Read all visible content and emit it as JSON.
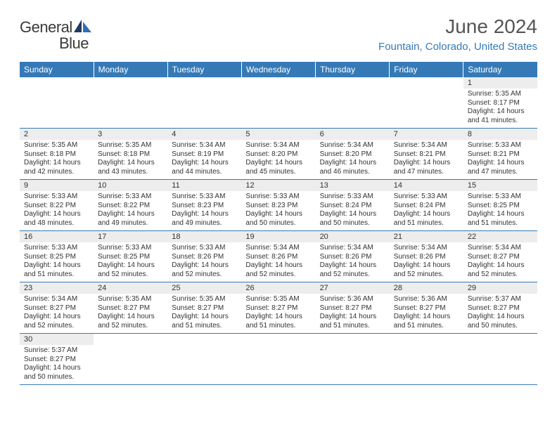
{
  "logo": {
    "part1": "General",
    "part2": "Blue"
  },
  "title": "June 2024",
  "location": "Fountain, Colorado, United States",
  "colors": {
    "header_bg": "#357ab7",
    "header_text": "#ffffff",
    "daynum_bg": "#ededed",
    "border": "#357ab7",
    "location_text": "#357ab7",
    "body_text": "#333333"
  },
  "weekdays": [
    "Sunday",
    "Monday",
    "Tuesday",
    "Wednesday",
    "Thursday",
    "Friday",
    "Saturday"
  ],
  "weeks": [
    {
      "nums": [
        "",
        "",
        "",
        "",
        "",
        "",
        "1"
      ],
      "cells": [
        null,
        null,
        null,
        null,
        null,
        null,
        {
          "sunrise": "Sunrise: 5:35 AM",
          "sunset": "Sunset: 8:17 PM",
          "day1": "Daylight: 14 hours",
          "day2": "and 41 minutes."
        }
      ]
    },
    {
      "nums": [
        "2",
        "3",
        "4",
        "5",
        "6",
        "7",
        "8"
      ],
      "cells": [
        {
          "sunrise": "Sunrise: 5:35 AM",
          "sunset": "Sunset: 8:18 PM",
          "day1": "Daylight: 14 hours",
          "day2": "and 42 minutes."
        },
        {
          "sunrise": "Sunrise: 5:35 AM",
          "sunset": "Sunset: 8:18 PM",
          "day1": "Daylight: 14 hours",
          "day2": "and 43 minutes."
        },
        {
          "sunrise": "Sunrise: 5:34 AM",
          "sunset": "Sunset: 8:19 PM",
          "day1": "Daylight: 14 hours",
          "day2": "and 44 minutes."
        },
        {
          "sunrise": "Sunrise: 5:34 AM",
          "sunset": "Sunset: 8:20 PM",
          "day1": "Daylight: 14 hours",
          "day2": "and 45 minutes."
        },
        {
          "sunrise": "Sunrise: 5:34 AM",
          "sunset": "Sunset: 8:20 PM",
          "day1": "Daylight: 14 hours",
          "day2": "and 46 minutes."
        },
        {
          "sunrise": "Sunrise: 5:34 AM",
          "sunset": "Sunset: 8:21 PM",
          "day1": "Daylight: 14 hours",
          "day2": "and 47 minutes."
        },
        {
          "sunrise": "Sunrise: 5:33 AM",
          "sunset": "Sunset: 8:21 PM",
          "day1": "Daylight: 14 hours",
          "day2": "and 47 minutes."
        }
      ]
    },
    {
      "nums": [
        "9",
        "10",
        "11",
        "12",
        "13",
        "14",
        "15"
      ],
      "cells": [
        {
          "sunrise": "Sunrise: 5:33 AM",
          "sunset": "Sunset: 8:22 PM",
          "day1": "Daylight: 14 hours",
          "day2": "and 48 minutes."
        },
        {
          "sunrise": "Sunrise: 5:33 AM",
          "sunset": "Sunset: 8:22 PM",
          "day1": "Daylight: 14 hours",
          "day2": "and 49 minutes."
        },
        {
          "sunrise": "Sunrise: 5:33 AM",
          "sunset": "Sunset: 8:23 PM",
          "day1": "Daylight: 14 hours",
          "day2": "and 49 minutes."
        },
        {
          "sunrise": "Sunrise: 5:33 AM",
          "sunset": "Sunset: 8:23 PM",
          "day1": "Daylight: 14 hours",
          "day2": "and 50 minutes."
        },
        {
          "sunrise": "Sunrise: 5:33 AM",
          "sunset": "Sunset: 8:24 PM",
          "day1": "Daylight: 14 hours",
          "day2": "and 50 minutes."
        },
        {
          "sunrise": "Sunrise: 5:33 AM",
          "sunset": "Sunset: 8:24 PM",
          "day1": "Daylight: 14 hours",
          "day2": "and 51 minutes."
        },
        {
          "sunrise": "Sunrise: 5:33 AM",
          "sunset": "Sunset: 8:25 PM",
          "day1": "Daylight: 14 hours",
          "day2": "and 51 minutes."
        }
      ]
    },
    {
      "nums": [
        "16",
        "17",
        "18",
        "19",
        "20",
        "21",
        "22"
      ],
      "cells": [
        {
          "sunrise": "Sunrise: 5:33 AM",
          "sunset": "Sunset: 8:25 PM",
          "day1": "Daylight: 14 hours",
          "day2": "and 51 minutes."
        },
        {
          "sunrise": "Sunrise: 5:33 AM",
          "sunset": "Sunset: 8:25 PM",
          "day1": "Daylight: 14 hours",
          "day2": "and 52 minutes."
        },
        {
          "sunrise": "Sunrise: 5:33 AM",
          "sunset": "Sunset: 8:26 PM",
          "day1": "Daylight: 14 hours",
          "day2": "and 52 minutes."
        },
        {
          "sunrise": "Sunrise: 5:34 AM",
          "sunset": "Sunset: 8:26 PM",
          "day1": "Daylight: 14 hours",
          "day2": "and 52 minutes."
        },
        {
          "sunrise": "Sunrise: 5:34 AM",
          "sunset": "Sunset: 8:26 PM",
          "day1": "Daylight: 14 hours",
          "day2": "and 52 minutes."
        },
        {
          "sunrise": "Sunrise: 5:34 AM",
          "sunset": "Sunset: 8:26 PM",
          "day1": "Daylight: 14 hours",
          "day2": "and 52 minutes."
        },
        {
          "sunrise": "Sunrise: 5:34 AM",
          "sunset": "Sunset: 8:27 PM",
          "day1": "Daylight: 14 hours",
          "day2": "and 52 minutes."
        }
      ]
    },
    {
      "nums": [
        "23",
        "24",
        "25",
        "26",
        "27",
        "28",
        "29"
      ],
      "cells": [
        {
          "sunrise": "Sunrise: 5:34 AM",
          "sunset": "Sunset: 8:27 PM",
          "day1": "Daylight: 14 hours",
          "day2": "and 52 minutes."
        },
        {
          "sunrise": "Sunrise: 5:35 AM",
          "sunset": "Sunset: 8:27 PM",
          "day1": "Daylight: 14 hours",
          "day2": "and 52 minutes."
        },
        {
          "sunrise": "Sunrise: 5:35 AM",
          "sunset": "Sunset: 8:27 PM",
          "day1": "Daylight: 14 hours",
          "day2": "and 51 minutes."
        },
        {
          "sunrise": "Sunrise: 5:35 AM",
          "sunset": "Sunset: 8:27 PM",
          "day1": "Daylight: 14 hours",
          "day2": "and 51 minutes."
        },
        {
          "sunrise": "Sunrise: 5:36 AM",
          "sunset": "Sunset: 8:27 PM",
          "day1": "Daylight: 14 hours",
          "day2": "and 51 minutes."
        },
        {
          "sunrise": "Sunrise: 5:36 AM",
          "sunset": "Sunset: 8:27 PM",
          "day1": "Daylight: 14 hours",
          "day2": "and 51 minutes."
        },
        {
          "sunrise": "Sunrise: 5:37 AM",
          "sunset": "Sunset: 8:27 PM",
          "day1": "Daylight: 14 hours",
          "day2": "and 50 minutes."
        }
      ]
    },
    {
      "nums": [
        "30",
        "",
        "",
        "",
        "",
        "",
        ""
      ],
      "cells": [
        {
          "sunrise": "Sunrise: 5:37 AM",
          "sunset": "Sunset: 8:27 PM",
          "day1": "Daylight: 14 hours",
          "day2": "and 50 minutes."
        },
        null,
        null,
        null,
        null,
        null,
        null
      ]
    }
  ]
}
